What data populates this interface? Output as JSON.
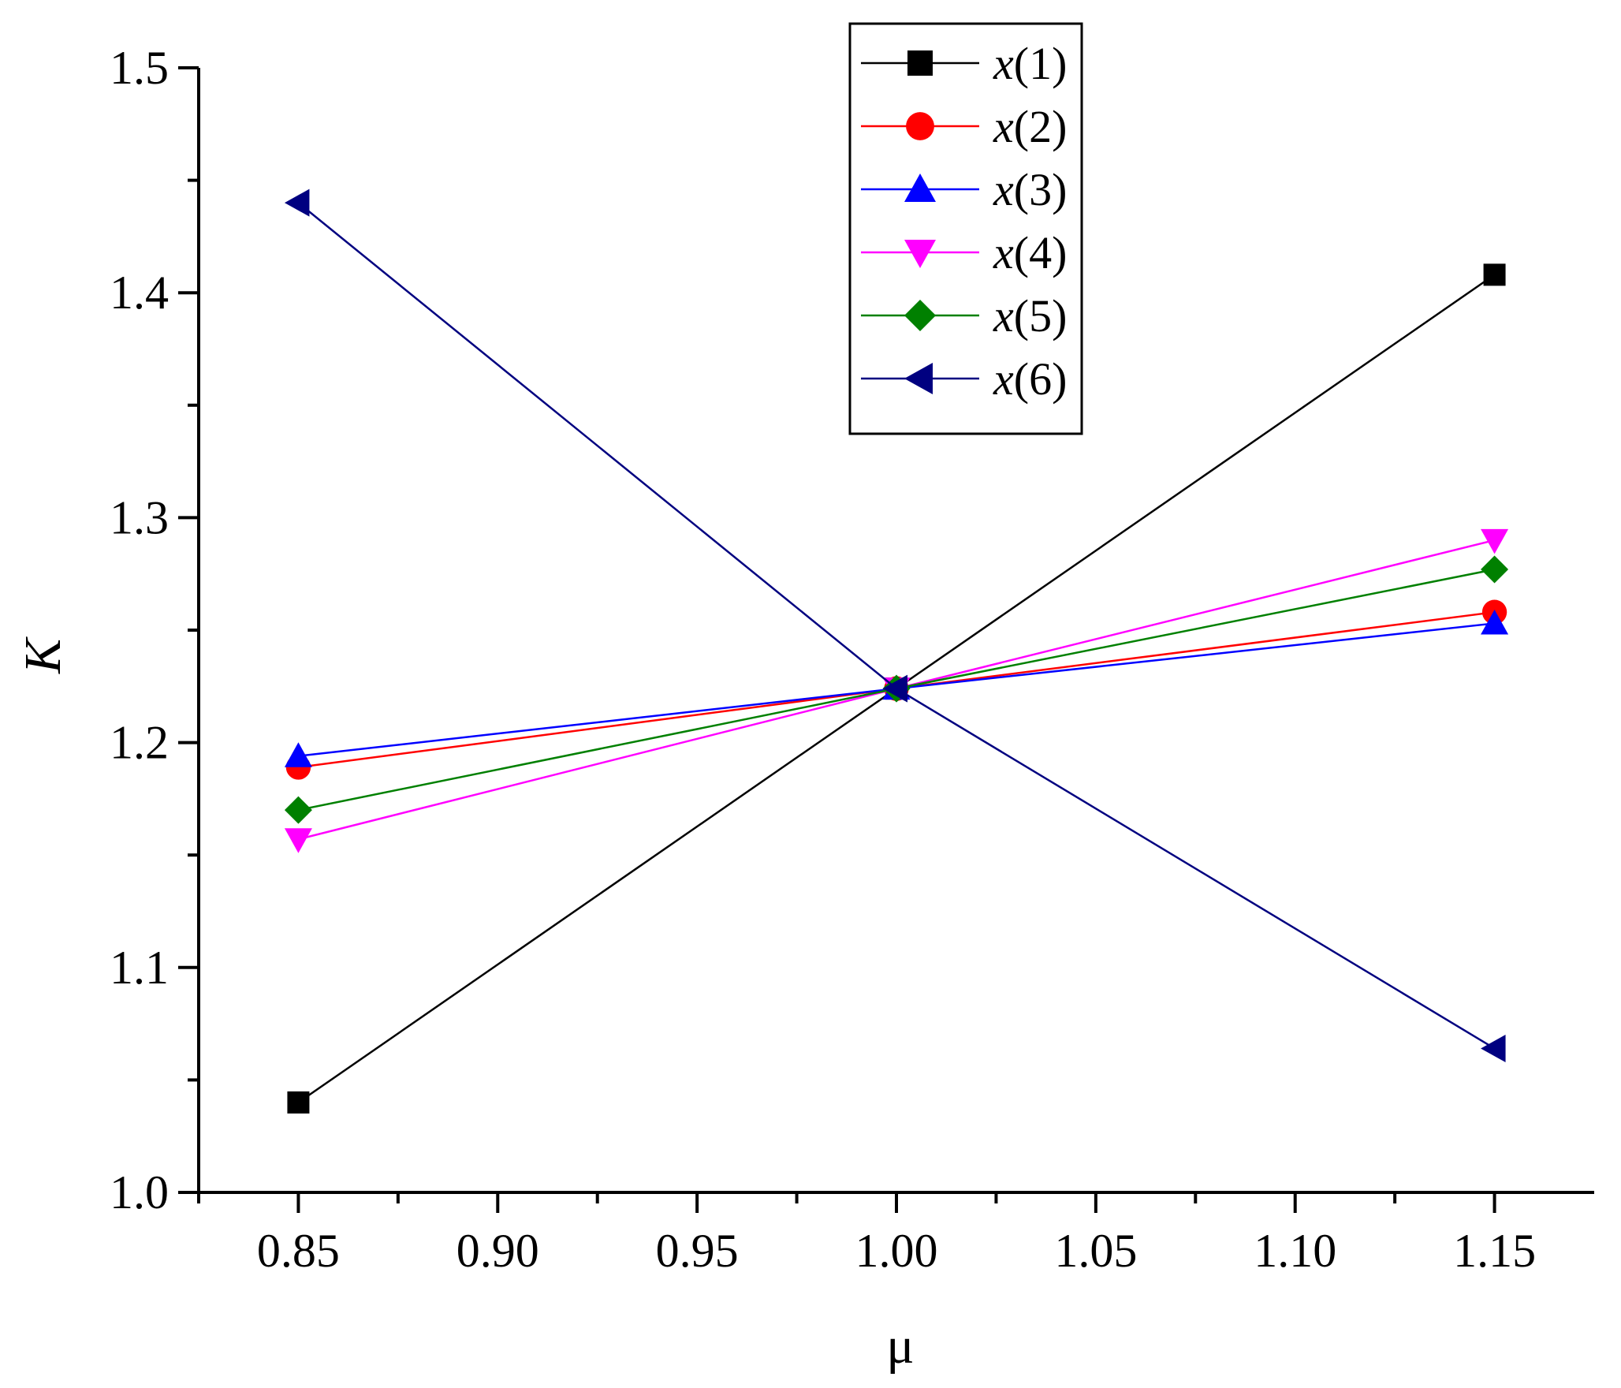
{
  "chart_data": {
    "type": "line",
    "xlabel": "μ",
    "ylabel": "K",
    "xlim": [
      0.825,
      1.175
    ],
    "ylim": [
      1.0,
      1.5
    ],
    "xticks": [
      0.85,
      0.9,
      0.95,
      1.0,
      1.05,
      1.1,
      1.15
    ],
    "xtick_labels": [
      "0.85",
      "0.90",
      "0.95",
      "1.00",
      "1.05",
      "1.10",
      "1.15"
    ],
    "yticks": [
      1.0,
      1.1,
      1.2,
      1.3,
      1.4,
      1.5
    ],
    "ytick_labels": [
      "1.0",
      "1.1",
      "1.2",
      "1.3",
      "1.4",
      "1.5"
    ],
    "grid": false,
    "legend_position": "top-center",
    "x": [
      0.85,
      1.0,
      1.15
    ],
    "series": [
      {
        "name": "x(1)",
        "name_var": "x",
        "name_idx": "(1)",
        "values": [
          1.04,
          1.224,
          1.408
        ],
        "color": "#000000",
        "marker": "square"
      },
      {
        "name": "x(2)",
        "name_var": "x",
        "name_idx": "(2)",
        "values": [
          1.189,
          1.224,
          1.258
        ],
        "color": "#ff0000",
        "marker": "circle"
      },
      {
        "name": "x(3)",
        "name_var": "x",
        "name_idx": "(3)",
        "values": [
          1.194,
          1.224,
          1.253
        ],
        "color": "#0000ff",
        "marker": "triangle-up"
      },
      {
        "name": "x(4)",
        "name_var": "x",
        "name_idx": "(4)",
        "values": [
          1.157,
          1.224,
          1.29
        ],
        "color": "#ff00ff",
        "marker": "triangle-down"
      },
      {
        "name": "x(5)",
        "name_var": "x",
        "name_idx": "(5)",
        "values": [
          1.17,
          1.224,
          1.277
        ],
        "color": "#008000",
        "marker": "diamond"
      },
      {
        "name": "x(6)",
        "name_var": "x",
        "name_idx": "(6)",
        "values": [
          1.44,
          1.224,
          1.064
        ],
        "color": "#000080",
        "marker": "triangle-left"
      }
    ]
  }
}
